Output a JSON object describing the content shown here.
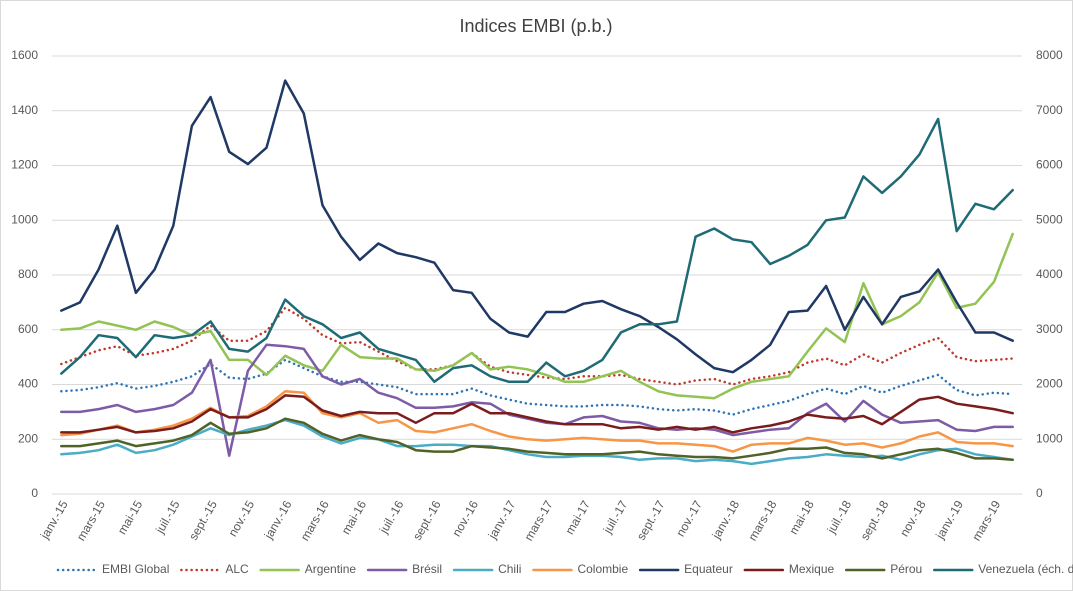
{
  "chart_data": {
    "type": "line",
    "title": "Indices EMBI (p.b.)",
    "categories": [
      "janv.-15",
      null,
      "mars-15",
      null,
      "mai-15",
      null,
      "juil.-15",
      null,
      "sept.-15",
      null,
      "nov.-15",
      null,
      "janv.-16",
      null,
      "mars-16",
      null,
      "mai-16",
      null,
      "juil.-16",
      null,
      "sept.-16",
      null,
      "nov.-16",
      null,
      "janv.-17",
      null,
      "mars-17",
      null,
      "mai-17",
      null,
      "juil.-17",
      null,
      "sept.-17",
      null,
      "nov.-17",
      null,
      "janv.-18",
      null,
      "mars-18",
      null,
      "mai-18",
      null,
      "juil.-18",
      null,
      "sept.-18",
      null,
      "nov.-18",
      null,
      "janv.-19",
      null,
      "mars-19",
      null
    ],
    "ylim": [
      0,
      1600
    ],
    "yticks": [
      0,
      200,
      400,
      600,
      800,
      1000,
      1200,
      1400,
      1600
    ],
    "y2lim": [
      0,
      8000
    ],
    "y2ticks": [
      0,
      1000,
      2000,
      3000,
      4000,
      5000,
      6000,
      7000,
      8000
    ],
    "grid": true,
    "legend": "bottom",
    "series": [
      {
        "name": "EMBI Global",
        "color": "#2e75b6",
        "dashed": true,
        "values": [
          375,
          380,
          390,
          405,
          385,
          395,
          410,
          430,
          475,
          425,
          420,
          440,
          490,
          460,
          430,
          410,
          410,
          400,
          390,
          365,
          365,
          365,
          385,
          360,
          345,
          330,
          325,
          320,
          320,
          325,
          325,
          320,
          310,
          305,
          310,
          305,
          290,
          310,
          325,
          340,
          365,
          385,
          365,
          395,
          370,
          395,
          415,
          435,
          380,
          360,
          370,
          365
        ]
      },
      {
        "name": "ALC",
        "color": "#c0392b",
        "dashed": true,
        "values": [
          475,
          500,
          525,
          540,
          505,
          515,
          530,
          560,
          615,
          560,
          560,
          595,
          680,
          640,
          580,
          550,
          555,
          520,
          485,
          455,
          455,
          470,
          515,
          465,
          445,
          435,
          425,
          420,
          430,
          430,
          435,
          420,
          410,
          400,
          415,
          420,
          400,
          420,
          430,
          445,
          480,
          495,
          470,
          510,
          480,
          515,
          545,
          570,
          500,
          485,
          490,
          495
        ]
      },
      {
        "name": "Argentine",
        "color": "#92c353",
        "values": [
          600,
          605,
          630,
          615,
          600,
          630,
          610,
          580,
          595,
          490,
          490,
          435,
          505,
          470,
          450,
          545,
          500,
          495,
          495,
          455,
          450,
          470,
          515,
          455,
          465,
          455,
          435,
          410,
          410,
          430,
          450,
          410,
          375,
          360,
          355,
          350,
          385,
          410,
          420,
          430,
          520,
          605,
          555,
          770,
          620,
          650,
          700,
          810,
          680,
          695,
          775,
          950
        ]
      },
      {
        "name": "Brésil",
        "color": "#7d5ba6",
        "values": [
          300,
          300,
          310,
          325,
          300,
          310,
          325,
          370,
          490,
          140,
          450,
          545,
          540,
          530,
          430,
          400,
          420,
          370,
          350,
          315,
          315,
          320,
          335,
          330,
          290,
          275,
          260,
          255,
          280,
          285,
          265,
          260,
          240,
          235,
          240,
          235,
          215,
          225,
          235,
          240,
          295,
          330,
          265,
          340,
          290,
          260,
          265,
          270,
          235,
          230,
          245,
          245
        ]
      },
      {
        "name": "Chili",
        "color": "#4bacc6",
        "values": [
          145,
          150,
          160,
          180,
          150,
          160,
          180,
          210,
          240,
          215,
          235,
          250,
          270,
          250,
          210,
          185,
          205,
          200,
          175,
          175,
          180,
          180,
          175,
          175,
          160,
          145,
          135,
          135,
          140,
          140,
          135,
          125,
          130,
          130,
          120,
          125,
          120,
          110,
          120,
          130,
          135,
          145,
          140,
          135,
          140,
          125,
          145,
          160,
          165,
          145,
          135,
          125
        ]
      },
      {
        "name": "Colombie",
        "color": "#f79646",
        "values": [
          215,
          220,
          235,
          250,
          225,
          235,
          250,
          275,
          315,
          280,
          285,
          320,
          375,
          370,
          295,
          280,
          295,
          260,
          270,
          230,
          225,
          240,
          255,
          230,
          210,
          200,
          195,
          200,
          205,
          200,
          195,
          195,
          185,
          185,
          180,
          175,
          155,
          180,
          185,
          185,
          205,
          195,
          180,
          185,
          170,
          185,
          210,
          225,
          190,
          185,
          185,
          175
        ]
      },
      {
        "name": "Equateur",
        "color": "#1f3864",
        "values": [
          670,
          700,
          820,
          980,
          735,
          820,
          980,
          1345,
          1450,
          1250,
          1205,
          1265,
          1510,
          1390,
          1055,
          940,
          855,
          915,
          880,
          865,
          845,
          745,
          735,
          640,
          590,
          575,
          665,
          665,
          695,
          705,
          675,
          650,
          610,
          565,
          510,
          460,
          445,
          490,
          545,
          665,
          670,
          760,
          600,
          720,
          620,
          720,
          740,
          820,
          700,
          590,
          590,
          560
        ]
      },
      {
        "name": "Mexique",
        "color": "#7b1c1c",
        "values": [
          225,
          225,
          235,
          245,
          225,
          230,
          240,
          265,
          310,
          280,
          280,
          310,
          360,
          355,
          305,
          285,
          300,
          295,
          295,
          260,
          295,
          295,
          330,
          295,
          295,
          280,
          265,
          255,
          255,
          255,
          240,
          245,
          235,
          245,
          235,
          245,
          225,
          240,
          250,
          265,
          290,
          280,
          275,
          285,
          255,
          300,
          345,
          355,
          330,
          320,
          310,
          295
        ]
      },
      {
        "name": "Pérou",
        "color": "#4f6228",
        "values": [
          175,
          175,
          185,
          195,
          175,
          185,
          195,
          215,
          260,
          220,
          225,
          240,
          275,
          260,
          220,
          195,
          215,
          200,
          190,
          160,
          155,
          155,
          175,
          170,
          165,
          155,
          150,
          145,
          145,
          145,
          150,
          155,
          145,
          140,
          135,
          135,
          130,
          140,
          150,
          165,
          165,
          170,
          150,
          145,
          130,
          145,
          160,
          165,
          150,
          130,
          130,
          125
        ]
      },
      {
        "name": "Venezuela (éch. dr.)",
        "color": "#1f6b75",
        "axis": "y2",
        "values": [
          2200,
          2500,
          2900,
          2850,
          2500,
          2900,
          2850,
          2900,
          3150,
          2650,
          2600,
          2850,
          3550,
          3250,
          3100,
          2850,
          2950,
          2650,
          2550,
          2450,
          2050,
          2300,
          2350,
          2150,
          2050,
          2050,
          2400,
          2150,
          2250,
          2450,
          2950,
          3100,
          3100,
          3150,
          4700,
          4850,
          4650,
          4600,
          4200,
          4350,
          4550,
          5000,
          5050,
          5800,
          5500,
          5800,
          6200,
          6850,
          4800,
          5300,
          5200,
          5550
        ]
      }
    ]
  }
}
